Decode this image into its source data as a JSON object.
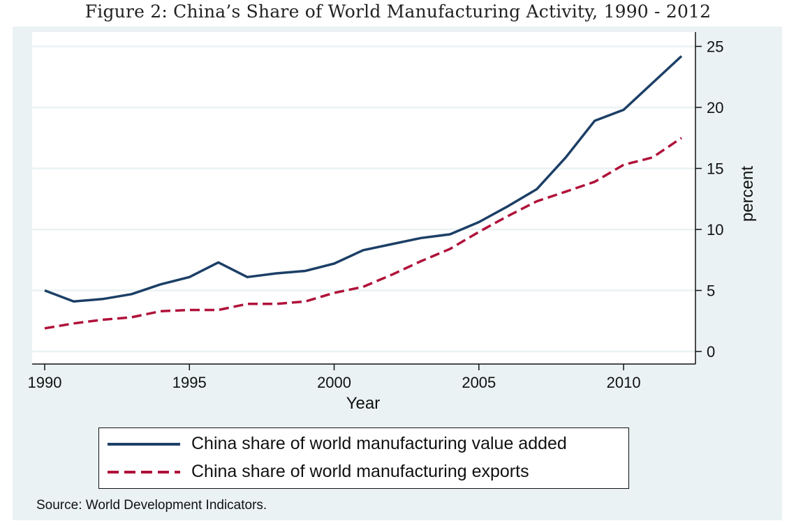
{
  "figure_title": "Figure 2: China’s Share of World Manufacturing Activity, 1990 - 2012",
  "source_note": "Source: World Development Indicators.",
  "colors": {
    "panel_bg": "#eaf2f3",
    "value_added": "#1c3f66",
    "exports": "#b0123a",
    "grid": "#ffffff"
  },
  "chart_data": {
    "type": "line",
    "title": "Figure 2: China’s Share of World Manufacturing Activity, 1990 - 2012",
    "xlabel": "Year",
    "ylabel": "percent",
    "xlim": [
      1990,
      2012
    ],
    "ylim": [
      0,
      25
    ],
    "x_ticks": [
      1990,
      1995,
      2000,
      2005,
      2010
    ],
    "y_ticks": [
      0,
      5,
      10,
      15,
      20,
      25
    ],
    "y_axis_side": "right",
    "grid": true,
    "legend_placement": "bottom",
    "x": [
      1990,
      1991,
      1992,
      1993,
      1994,
      1995,
      1996,
      1997,
      1998,
      1999,
      2000,
      2001,
      2002,
      2003,
      2004,
      2005,
      2006,
      2007,
      2008,
      2009,
      2010,
      2011,
      2012
    ],
    "series": [
      {
        "name": "China share of world manufacturing value added",
        "style": "solid",
        "values": [
          5.0,
          4.1,
          4.3,
          4.7,
          5.5,
          6.1,
          7.3,
          6.1,
          6.4,
          6.6,
          7.2,
          8.3,
          8.8,
          9.3,
          9.6,
          10.6,
          11.9,
          13.3,
          15.9,
          18.9,
          19.8,
          22.0,
          24.2
        ]
      },
      {
        "name": "China share of world manufacturing exports",
        "style": "dashed",
        "values": [
          1.9,
          2.3,
          2.6,
          2.8,
          3.3,
          3.4,
          3.4,
          3.9,
          3.9,
          4.1,
          4.8,
          5.3,
          6.3,
          7.4,
          8.4,
          9.8,
          11.1,
          12.3,
          13.1,
          13.9,
          15.3,
          15.9,
          17.5
        ]
      }
    ]
  }
}
